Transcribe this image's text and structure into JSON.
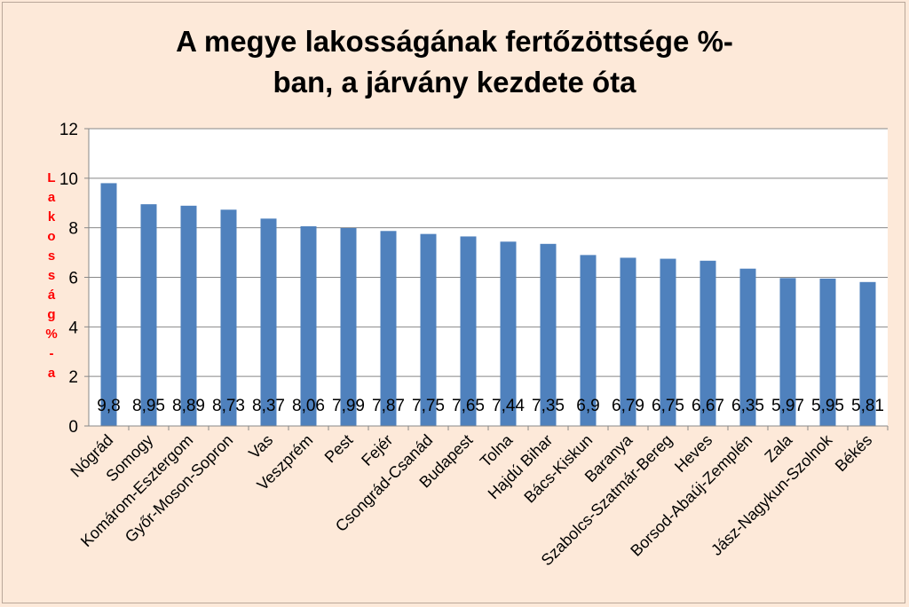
{
  "chart_data": {
    "type": "bar",
    "title": "A megye lakosságának fertőzöttsége %-ban, a járvány kezdete óta",
    "ylabel": "Lakosság % - a",
    "xlabel": "",
    "ylim": [
      0,
      12
    ],
    "yticks": [
      0,
      2,
      4,
      6,
      8,
      10,
      12
    ],
    "grid": true,
    "legend": "none",
    "bar_color": "#4f81bd",
    "categories": [
      "Nógrád",
      "Somogy",
      "Komárom-Esztergom",
      "Győr-Moson-Sopron",
      "Vas",
      "Veszprém",
      "Pest",
      "Fejér",
      "Csongrád-Csanád",
      "Budapest",
      "Tolna",
      "Hajdú Bihar",
      "Bács-Kiskun",
      "Baranya",
      "Szabolcs-Szatmár-Bereg",
      "Heves",
      "Borsod-Abaúj-Zemplén",
      "Zala",
      "Jász-Nagykun-Szolnok",
      "Békés"
    ],
    "values": [
      9.8,
      8.95,
      8.89,
      8.73,
      8.37,
      8.06,
      7.99,
      7.87,
      7.75,
      7.65,
      7.44,
      7.35,
      6.9,
      6.79,
      6.75,
      6.67,
      6.35,
      5.97,
      5.95,
      5.81
    ],
    "data_labels": [
      "9,8",
      "8,95",
      "8,89",
      "8,73",
      "8,37",
      "8,06",
      "7,99",
      "7,87",
      "7,75",
      "7,65",
      "7,44",
      "7,35",
      "6,9",
      "6,79",
      "6,75",
      "6,67",
      "6,35",
      "5,97",
      "5,95",
      "5,81"
    ]
  }
}
